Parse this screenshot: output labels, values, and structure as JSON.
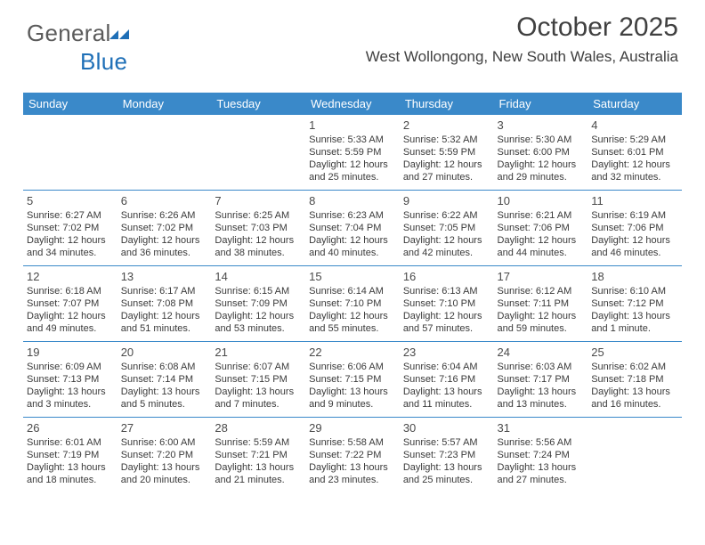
{
  "logo": {
    "word1": "General",
    "word2": "Blue"
  },
  "header": {
    "title": "October 2025",
    "subtitle": "West Wollongong, New South Wales, Australia"
  },
  "calendar": {
    "days_of_week": [
      "Sunday",
      "Monday",
      "Tuesday",
      "Wednesday",
      "Thursday",
      "Friday",
      "Saturday"
    ],
    "header_bg": "#3a89c9",
    "header_fg": "#ffffff",
    "rule_color": "#3a89c9",
    "weeks": [
      [
        null,
        null,
        null,
        {
          "n": "1",
          "sr": "5:33 AM",
          "ss": "5:59 PM",
          "dl": "12 hours and 25 minutes."
        },
        {
          "n": "2",
          "sr": "5:32 AM",
          "ss": "5:59 PM",
          "dl": "12 hours and 27 minutes."
        },
        {
          "n": "3",
          "sr": "5:30 AM",
          "ss": "6:00 PM",
          "dl": "12 hours and 29 minutes."
        },
        {
          "n": "4",
          "sr": "5:29 AM",
          "ss": "6:01 PM",
          "dl": "12 hours and 32 minutes."
        }
      ],
      [
        {
          "n": "5",
          "sr": "6:27 AM",
          "ss": "7:02 PM",
          "dl": "12 hours and 34 minutes."
        },
        {
          "n": "6",
          "sr": "6:26 AM",
          "ss": "7:02 PM",
          "dl": "12 hours and 36 minutes."
        },
        {
          "n": "7",
          "sr": "6:25 AM",
          "ss": "7:03 PM",
          "dl": "12 hours and 38 minutes."
        },
        {
          "n": "8",
          "sr": "6:23 AM",
          "ss": "7:04 PM",
          "dl": "12 hours and 40 minutes."
        },
        {
          "n": "9",
          "sr": "6:22 AM",
          "ss": "7:05 PM",
          "dl": "12 hours and 42 minutes."
        },
        {
          "n": "10",
          "sr": "6:21 AM",
          "ss": "7:06 PM",
          "dl": "12 hours and 44 minutes."
        },
        {
          "n": "11",
          "sr": "6:19 AM",
          "ss": "7:06 PM",
          "dl": "12 hours and 46 minutes."
        }
      ],
      [
        {
          "n": "12",
          "sr": "6:18 AM",
          "ss": "7:07 PM",
          "dl": "12 hours and 49 minutes."
        },
        {
          "n": "13",
          "sr": "6:17 AM",
          "ss": "7:08 PM",
          "dl": "12 hours and 51 minutes."
        },
        {
          "n": "14",
          "sr": "6:15 AM",
          "ss": "7:09 PM",
          "dl": "12 hours and 53 minutes."
        },
        {
          "n": "15",
          "sr": "6:14 AM",
          "ss": "7:10 PM",
          "dl": "12 hours and 55 minutes."
        },
        {
          "n": "16",
          "sr": "6:13 AM",
          "ss": "7:10 PM",
          "dl": "12 hours and 57 minutes."
        },
        {
          "n": "17",
          "sr": "6:12 AM",
          "ss": "7:11 PM",
          "dl": "12 hours and 59 minutes."
        },
        {
          "n": "18",
          "sr": "6:10 AM",
          "ss": "7:12 PM",
          "dl": "13 hours and 1 minute."
        }
      ],
      [
        {
          "n": "19",
          "sr": "6:09 AM",
          "ss": "7:13 PM",
          "dl": "13 hours and 3 minutes."
        },
        {
          "n": "20",
          "sr": "6:08 AM",
          "ss": "7:14 PM",
          "dl": "13 hours and 5 minutes."
        },
        {
          "n": "21",
          "sr": "6:07 AM",
          "ss": "7:15 PM",
          "dl": "13 hours and 7 minutes."
        },
        {
          "n": "22",
          "sr": "6:06 AM",
          "ss": "7:15 PM",
          "dl": "13 hours and 9 minutes."
        },
        {
          "n": "23",
          "sr": "6:04 AM",
          "ss": "7:16 PM",
          "dl": "13 hours and 11 minutes."
        },
        {
          "n": "24",
          "sr": "6:03 AM",
          "ss": "7:17 PM",
          "dl": "13 hours and 13 minutes."
        },
        {
          "n": "25",
          "sr": "6:02 AM",
          "ss": "7:18 PM",
          "dl": "13 hours and 16 minutes."
        }
      ],
      [
        {
          "n": "26",
          "sr": "6:01 AM",
          "ss": "7:19 PM",
          "dl": "13 hours and 18 minutes."
        },
        {
          "n": "27",
          "sr": "6:00 AM",
          "ss": "7:20 PM",
          "dl": "13 hours and 20 minutes."
        },
        {
          "n": "28",
          "sr": "5:59 AM",
          "ss": "7:21 PM",
          "dl": "13 hours and 21 minutes."
        },
        {
          "n": "29",
          "sr": "5:58 AM",
          "ss": "7:22 PM",
          "dl": "13 hours and 23 minutes."
        },
        {
          "n": "30",
          "sr": "5:57 AM",
          "ss": "7:23 PM",
          "dl": "13 hours and 25 minutes."
        },
        {
          "n": "31",
          "sr": "5:56 AM",
          "ss": "7:24 PM",
          "dl": "13 hours and 27 minutes."
        },
        null
      ]
    ],
    "labels": {
      "sunrise_prefix": "Sunrise: ",
      "sunset_prefix": "Sunset: ",
      "daylight_prefix": "Daylight: "
    }
  }
}
